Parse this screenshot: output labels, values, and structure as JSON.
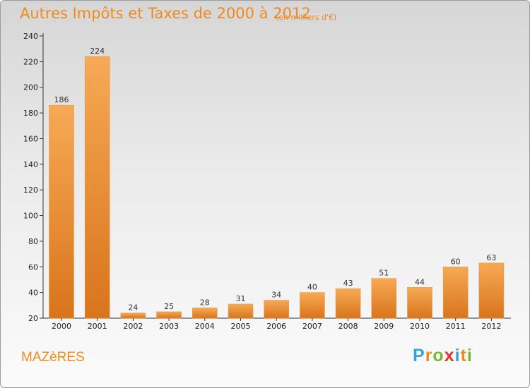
{
  "header": {
    "title": "Autres Impôts et Taxes de 2000 à 2012",
    "unit": "(en milliers d'€)"
  },
  "footer": {
    "city": "MAZèRES",
    "logo": "Proxiti"
  },
  "colors": {
    "accent": "#f08a1e",
    "bar_top": "#f7a955",
    "bar_bottom": "#d9741c",
    "logo": [
      "#3aa0d8",
      "#f08a1e",
      "#7ab829",
      "#e2372a",
      "#3aa0d8",
      "#f08a1e",
      "#7ab829"
    ]
  },
  "chart_data": {
    "type": "bar",
    "title": "Autres Impôts et Taxes de 2000 à 2012",
    "subtitle": "(en milliers d'€)",
    "categories": [
      "2000",
      "2001",
      "2002",
      "2003",
      "2004",
      "2005",
      "2006",
      "2007",
      "2008",
      "2009",
      "2010",
      "2011",
      "2012"
    ],
    "values": [
      186,
      224,
      24,
      25,
      28,
      31,
      34,
      40,
      43,
      51,
      44,
      60,
      63
    ],
    "ylim": [
      20,
      240
    ],
    "yticks": [
      20,
      40,
      60,
      80,
      100,
      120,
      140,
      160,
      180,
      200,
      220,
      240
    ],
    "grid": false,
    "data_labels": true
  }
}
